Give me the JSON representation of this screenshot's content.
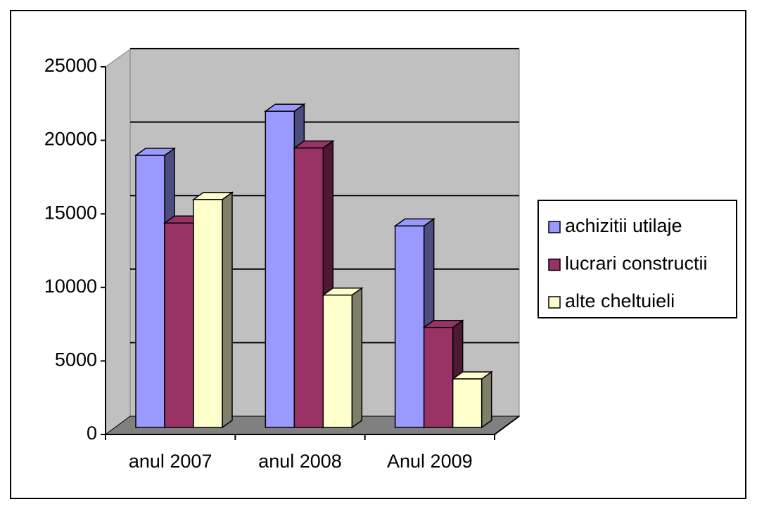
{
  "chart_data": {
    "type": "bar3d",
    "categories": [
      "anul 2007",
      "anul 2008",
      "Anul 2009"
    ],
    "series": [
      {
        "name": "achizitii utilaje",
        "color": "#9999ff",
        "side": "#4d4d80",
        "values": [
          18500,
          21500,
          13700
        ]
      },
      {
        "name": "lucrari constructii",
        "color": "#993366",
        "side": "#4d1a33",
        "values": [
          13900,
          19000,
          6800
        ]
      },
      {
        "name": "alte cheltuieli",
        "color": "#ffffcc",
        "side": "#80806a",
        "values": [
          15500,
          9000,
          3300
        ]
      }
    ],
    "ylim": [
      0,
      25000
    ],
    "yticks": [
      0,
      5000,
      10000,
      15000,
      20000,
      25000
    ],
    "grid": true,
    "legend": "right"
  }
}
